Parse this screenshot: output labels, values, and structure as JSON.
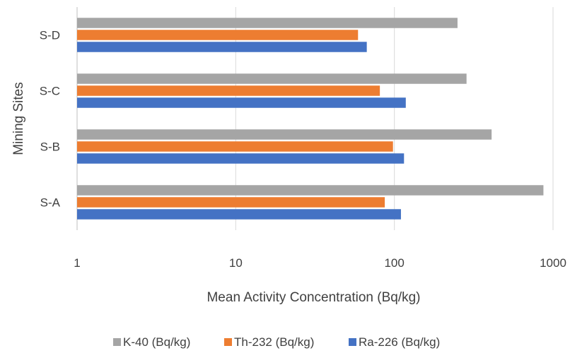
{
  "chart_data": {
    "type": "bar",
    "orientation": "horizontal",
    "xscale": "log",
    "xlim": [
      1,
      1000
    ],
    "x_ticks": [
      "1",
      "10",
      "100",
      "1000"
    ],
    "xlabel": "Mean Activity Concentration (Bq/kg)",
    "ylabel": "Mining Sites",
    "categories": [
      "S-A",
      "S-B",
      "S-C",
      "S-D"
    ],
    "series": [
      {
        "name": "Ra-226 (Bq/kg)",
        "color": "#4472C4",
        "values": [
          110,
          115,
          118,
          67
        ]
      },
      {
        "name": "Th-232 (Bq/kg)",
        "color": "#ED7D31",
        "values": [
          87,
          98,
          81,
          59
        ]
      },
      {
        "name": "K-40 (Bq/kg)",
        "color": "#A5A5A5",
        "values": [
          870,
          410,
          285,
          250
        ]
      }
    ],
    "legend_order": [
      "K-40 (Bq/kg)",
      "Th-232 (Bq/kg)",
      "Ra-226 (Bq/kg)"
    ],
    "legend_position": "bottom",
    "grid": "vertical",
    "title": ""
  }
}
